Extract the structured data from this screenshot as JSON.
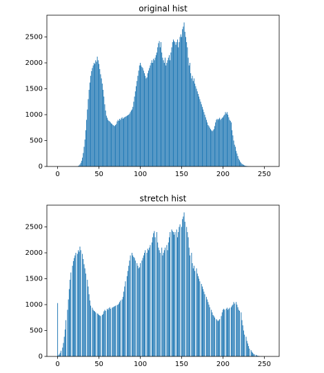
{
  "chart_data": [
    {
      "type": "bar",
      "title": "original hist",
      "color": "#1f77b4",
      "x": [
        0,
        1,
        2,
        3,
        4,
        5,
        6,
        7,
        8,
        9,
        10,
        11,
        12,
        13,
        14,
        15,
        16,
        17,
        18,
        19,
        20,
        21,
        22,
        23,
        24,
        25,
        26,
        27,
        28,
        29,
        30,
        31,
        32,
        33,
        34,
        35,
        36,
        37,
        38,
        39,
        40,
        41,
        42,
        43,
        44,
        45,
        46,
        47,
        48,
        49,
        50,
        51,
        52,
        53,
        54,
        55,
        56,
        57,
        58,
        59,
        60,
        61,
        62,
        63,
        64,
        65,
        66,
        67,
        68,
        69,
        70,
        71,
        72,
        73,
        74,
        75,
        76,
        77,
        78,
        79,
        80,
        81,
        82,
        83,
        84,
        85,
        86,
        87,
        88,
        89,
        90,
        91,
        92,
        93,
        94,
        95,
        96,
        97,
        98,
        99,
        100,
        101,
        102,
        103,
        104,
        105,
        106,
        107,
        108,
        109,
        110,
        111,
        112,
        113,
        114,
        115,
        116,
        117,
        118,
        119,
        120,
        121,
        122,
        123,
        124,
        125,
        126,
        127,
        128,
        129,
        130,
        131,
        132,
        133,
        134,
        135,
        136,
        137,
        138,
        139,
        140,
        141,
        142,
        143,
        144,
        145,
        146,
        147,
        148,
        149,
        150,
        151,
        152,
        153,
        154,
        155,
        156,
        157,
        158,
        159,
        160,
        161,
        162,
        163,
        164,
        165,
        166,
        167,
        168,
        169,
        170,
        171,
        172,
        173,
        174,
        175,
        176,
        177,
        178,
        179,
        180,
        181,
        182,
        183,
        184,
        185,
        186,
        187,
        188,
        189,
        190,
        191,
        192,
        193,
        194,
        195,
        196,
        197,
        198,
        199,
        200,
        201,
        202,
        203,
        204,
        205,
        206,
        207,
        208,
        209,
        210,
        211,
        212,
        213,
        214,
        215,
        216,
        217,
        218,
        219,
        220,
        221,
        222,
        223,
        224,
        225,
        226,
        227,
        228,
        229,
        230,
        231,
        232,
        233,
        234,
        235,
        236,
        237,
        238,
        239,
        240,
        241,
        242,
        243,
        244,
        245,
        246,
        247,
        248,
        249,
        250,
        251,
        252,
        253,
        254,
        255
      ],
      "values": [
        0,
        0,
        0,
        0,
        0,
        0,
        0,
        0,
        0,
        0,
        0,
        0,
        0,
        0,
        0,
        0,
        0,
        0,
        0,
        0,
        0,
        0,
        0,
        0,
        0,
        10,
        20,
        40,
        70,
        110,
        170,
        260,
        380,
        520,
        700,
        900,
        1100,
        1300,
        1480,
        1620,
        1750,
        1840,
        1900,
        1950,
        2000,
        1980,
        2050,
        2020,
        2120,
        2050,
        1980,
        1880,
        1780,
        1700,
        1600,
        1480,
        1350,
        1200,
        1080,
        980,
        940,
        900,
        880,
        870,
        850,
        830,
        820,
        800,
        790,
        780,
        800,
        820,
        870,
        900,
        880,
        920,
        900,
        930,
        950,
        920,
        940,
        950,
        960,
        970,
        980,
        990,
        1000,
        1020,
        1050,
        1080,
        1100,
        1150,
        1250,
        1350,
        1450,
        1550,
        1650,
        1750,
        1850,
        1950,
        2000,
        1950,
        1920,
        1900,
        1850,
        1800,
        1750,
        1700,
        1720,
        1800,
        1850,
        1900,
        1950,
        2000,
        2050,
        2000,
        2080,
        2050,
        2100,
        2150,
        2200,
        2300,
        2380,
        2420,
        2300,
        2400,
        2200,
        2100,
        2050,
        2000,
        2100,
        1950,
        2000,
        2050,
        2100,
        2150,
        2050,
        2200,
        2300,
        2400,
        2450,
        2420,
        2400,
        2350,
        2400,
        2450,
        2300,
        2400,
        2500,
        2550,
        2500,
        2650,
        2700,
        2780,
        2600,
        2500,
        2400,
        2300,
        2100,
        1950,
        2000,
        1800,
        1700,
        1750,
        1650,
        1700,
        1600,
        1550,
        1500,
        1450,
        1400,
        1350,
        1300,
        1250,
        1200,
        1150,
        1100,
        1050,
        1000,
        950,
        900,
        850,
        800,
        780,
        750,
        720,
        700,
        680,
        700,
        720,
        780,
        850,
        900,
        920,
        900,
        920,
        940,
        900,
        920,
        940,
        950,
        980,
        1000,
        1050,
        1020,
        1050,
        1000,
        950,
        900,
        880,
        850,
        700,
        600,
        500,
        420,
        380,
        300,
        250,
        200,
        150,
        120,
        90,
        70,
        50,
        40,
        30,
        20,
        15,
        10,
        8,
        5,
        3,
        2,
        1,
        0,
        0,
        0,
        0,
        0,
        0,
        0,
        0,
        0,
        0,
        0,
        0,
        0,
        0,
        0,
        0,
        0,
        0,
        0,
        0,
        0,
        0
      ],
      "xlim": [
        -13,
        268
      ],
      "xticks": [
        0,
        50,
        100,
        150,
        200,
        250
      ],
      "ylim": [
        0,
        2920
      ],
      "yticks": [
        0,
        500,
        1000,
        1500,
        2000,
        2500
      ]
    },
    {
      "type": "bar",
      "title": "stretch hist",
      "color": "#1f77b4",
      "x": [
        0,
        1,
        2,
        3,
        4,
        5,
        6,
        7,
        8,
        9,
        10,
        11,
        12,
        13,
        14,
        15,
        16,
        17,
        18,
        19,
        20,
        21,
        22,
        23,
        24,
        25,
        26,
        27,
        28,
        29,
        30,
        31,
        32,
        33,
        34,
        35,
        36,
        37,
        38,
        39,
        40,
        41,
        42,
        43,
        44,
        45,
        46,
        47,
        48,
        49,
        50,
        51,
        52,
        53,
        54,
        55,
        56,
        57,
        58,
        59,
        60,
        61,
        62,
        63,
        64,
        65,
        66,
        67,
        68,
        69,
        70,
        71,
        72,
        73,
        74,
        75,
        76,
        77,
        78,
        79,
        80,
        81,
        82,
        83,
        84,
        85,
        86,
        87,
        88,
        89,
        90,
        91,
        92,
        93,
        94,
        95,
        96,
        97,
        98,
        99,
        100,
        101,
        102,
        103,
        104,
        105,
        106,
        107,
        108,
        109,
        110,
        111,
        112,
        113,
        114,
        115,
        116,
        117,
        118,
        119,
        120,
        121,
        122,
        123,
        124,
        125,
        126,
        127,
        128,
        129,
        130,
        131,
        132,
        133,
        134,
        135,
        136,
        137,
        138,
        139,
        140,
        141,
        142,
        143,
        144,
        145,
        146,
        147,
        148,
        149,
        150,
        151,
        152,
        153,
        154,
        155,
        156,
        157,
        158,
        159,
        160,
        161,
        162,
        163,
        164,
        165,
        166,
        167,
        168,
        169,
        170,
        171,
        172,
        173,
        174,
        175,
        176,
        177,
        178,
        179,
        180,
        181,
        182,
        183,
        184,
        185,
        186,
        187,
        188,
        189,
        190,
        191,
        192,
        193,
        194,
        195,
        196,
        197,
        198,
        199,
        200,
        201,
        202,
        203,
        204,
        205,
        206,
        207,
        208,
        209,
        210,
        211,
        212,
        213,
        214,
        215,
        216,
        217,
        218,
        219,
        220,
        221,
        222,
        223,
        224,
        225,
        226,
        227,
        228,
        229,
        230,
        231,
        232,
        233,
        234,
        235,
        236,
        237,
        238,
        239,
        240,
        241,
        242,
        243,
        244,
        245,
        246,
        247,
        248,
        249,
        250,
        251,
        252,
        253,
        254,
        255
      ],
      "values": [
        1030,
        20,
        40,
        70,
        110,
        0,
        170,
        260,
        380,
        520,
        700,
        0,
        900,
        1100,
        1300,
        1480,
        1620,
        0,
        1750,
        1840,
        1900,
        1950,
        2000,
        0,
        1980,
        2050,
        2020,
        2120,
        2050,
        0,
        1980,
        1880,
        1780,
        1700,
        1600,
        0,
        1480,
        1350,
        1200,
        1080,
        980,
        0,
        940,
        900,
        880,
        870,
        850,
        0,
        830,
        820,
        800,
        790,
        780,
        0,
        800,
        820,
        870,
        900,
        880,
        0,
        920,
        900,
        930,
        950,
        920,
        0,
        940,
        950,
        960,
        970,
        980,
        0,
        990,
        1000,
        1020,
        1050,
        1080,
        0,
        1100,
        1150,
        1250,
        1350,
        1450,
        0,
        1550,
        1650,
        1750,
        1850,
        1950,
        0,
        2000,
        1950,
        1920,
        1900,
        1850,
        0,
        1800,
        1750,
        1700,
        1720,
        1800,
        0,
        1850,
        1900,
        1950,
        2000,
        2050,
        0,
        2000,
        2080,
        2050,
        2100,
        2150,
        0,
        2200,
        2300,
        2380,
        2420,
        2300,
        0,
        2400,
        2200,
        2100,
        2050,
        2000,
        0,
        2100,
        1950,
        2000,
        2050,
        2100,
        0,
        2150,
        2050,
        2200,
        2300,
        2400,
        0,
        2450,
        2420,
        2400,
        2350,
        2400,
        0,
        2450,
        2300,
        2400,
        2500,
        2550,
        0,
        2500,
        2650,
        2700,
        2780,
        2600,
        0,
        2500,
        2400,
        2300,
        2100,
        1950,
        0,
        2000,
        1800,
        1700,
        1750,
        1650,
        0,
        1700,
        1600,
        1550,
        1500,
        1450,
        0,
        1400,
        1350,
        1300,
        1250,
        1200,
        0,
        1150,
        1100,
        1050,
        1000,
        950,
        0,
        900,
        850,
        800,
        780,
        750,
        0,
        720,
        700,
        680,
        700,
        720,
        0,
        780,
        850,
        900,
        920,
        900,
        0,
        920,
        940,
        900,
        920,
        940,
        0,
        950,
        980,
        1000,
        1050,
        1020,
        0,
        1050,
        1000,
        950,
        900,
        880,
        0,
        850,
        700,
        600,
        500,
        420,
        0,
        380,
        300,
        250,
        200,
        150,
        0,
        120,
        90,
        70,
        50,
        40,
        0,
        30,
        20,
        15,
        10,
        8,
        0,
        5,
        3,
        2,
        1,
        0,
        0,
        0,
        0,
        0,
        0
      ],
      "xlim": [
        -13,
        268
      ],
      "xticks": [
        0,
        50,
        100,
        150,
        200,
        250
      ],
      "ylim": [
        0,
        2920
      ],
      "yticks": [
        0,
        500,
        1000,
        1500,
        2000,
        2500
      ]
    }
  ]
}
